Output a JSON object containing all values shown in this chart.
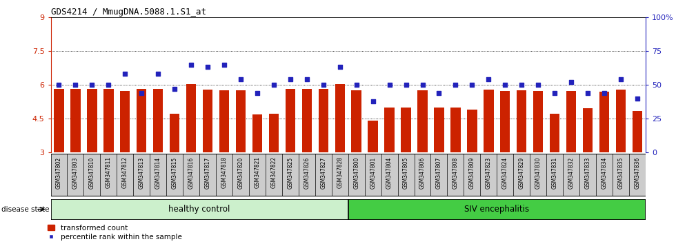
{
  "title": "GDS4214 / MmugDNA.5088.1.S1_at",
  "samples": [
    "GSM347802",
    "GSM347803",
    "GSM347810",
    "GSM347811",
    "GSM347812",
    "GSM347813",
    "GSM347814",
    "GSM347815",
    "GSM347816",
    "GSM347817",
    "GSM347818",
    "GSM347820",
    "GSM347821",
    "GSM347822",
    "GSM347825",
    "GSM347826",
    "GSM347827",
    "GSM347828",
    "GSM347800",
    "GSM347801",
    "GSM347804",
    "GSM347805",
    "GSM347806",
    "GSM347807",
    "GSM347808",
    "GSM347809",
    "GSM347823",
    "GSM347824",
    "GSM347829",
    "GSM347830",
    "GSM347831",
    "GSM347832",
    "GSM347833",
    "GSM347834",
    "GSM347835",
    "GSM347836"
  ],
  "bar_values": [
    5.82,
    5.82,
    5.82,
    5.82,
    5.72,
    5.82,
    5.82,
    4.72,
    6.02,
    5.78,
    5.75,
    5.75,
    4.7,
    4.72,
    5.82,
    5.82,
    5.82,
    6.02,
    5.75,
    4.42,
    5.0,
    5.0,
    5.75,
    5.0,
    5.0,
    4.9,
    5.78,
    5.72,
    5.75,
    5.72,
    4.72,
    5.72,
    4.95,
    5.68,
    5.78,
    4.85
  ],
  "dot_values": [
    50,
    50,
    50,
    50,
    58,
    44,
    58,
    47,
    65,
    63,
    65,
    54,
    44,
    50,
    54,
    54,
    50,
    63,
    50,
    38,
    50,
    50,
    50,
    44,
    50,
    50,
    54,
    50,
    50,
    50,
    44,
    52,
    44,
    44,
    54,
    40
  ],
  "healthy_count": 18,
  "bar_color": "#cc2200",
  "dot_color": "#2222bb",
  "bar_bottom": 3.0,
  "ylim_left": [
    3.0,
    9.0
  ],
  "ylim_right": [
    0,
    100
  ],
  "yticks_left": [
    3.0,
    4.5,
    6.0,
    7.5,
    9.0
  ],
  "ytick_labels_left": [
    "3",
    "4.5",
    "6",
    "7.5",
    "9"
  ],
  "yticks_right": [
    0,
    25,
    50,
    75,
    100
  ],
  "ytick_labels_right": [
    "0",
    "25",
    "50",
    "75",
    "100%"
  ],
  "hlines": [
    4.5,
    6.0,
    7.5
  ],
  "healthy_label": "healthy control",
  "siv_label": "SIV encephalitis",
  "disease_state_label": "disease state",
  "legend_bar_label": "transformed count",
  "legend_dot_label": "percentile rank within the sample",
  "left_tick_color": "#cc2200",
  "right_tick_color": "#2222bb",
  "bg_color": "#ffffff",
  "tick_area_color": "#cccccc",
  "healthy_bg": "#ccf0cc",
  "siv_bg": "#44cc44"
}
